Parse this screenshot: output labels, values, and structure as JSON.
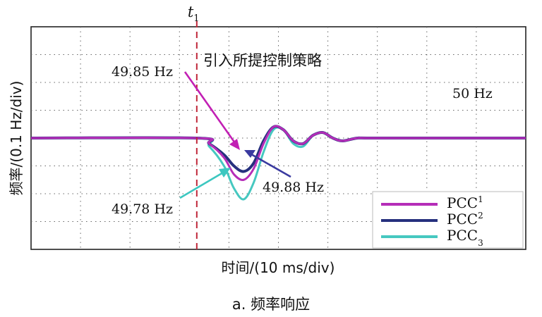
{
  "chart_data": {
    "type": "line",
    "caption": "a. 频率响应",
    "xlabel": "时间/(10 ms/div)",
    "ylabel": "频率/(0.1 Hz/div)",
    "grid": true,
    "x_divisions": 10,
    "y_divisions": 8,
    "event_marker": {
      "label_base": "t",
      "label_sub": "1",
      "x": 3.35
    },
    "nominal_label": "50 Hz",
    "annotation": "引入所提控制策略",
    "callouts": [
      {
        "text": "49.85 Hz",
        "color": "#c21fb4"
      },
      {
        "text": "49.88 Hz",
        "color": "#3a3aa0"
      },
      {
        "text": "49.78 Hz",
        "color": "#3cc7c0"
      }
    ],
    "legend": {
      "placement": "bottom-right",
      "entries": [
        {
          "base": "PCC",
          "sub": "1",
          "color": "#b52db8"
        },
        {
          "base": "PCC",
          "sub": "2",
          "color": "#26307e"
        },
        {
          "base": "PCC",
          "sub": "3",
          "color": "#46c8c0"
        }
      ]
    },
    "ylim": [
      49.6,
      50.4
    ],
    "xlim": [
      0,
      10
    ],
    "series": [
      {
        "color": "#b52db8",
        "x": [
          0,
          3.35,
          3.6,
          3.9,
          4.1,
          4.3,
          4.5,
          4.7,
          4.9,
          5.1,
          5.3,
          5.5,
          5.7,
          5.9,
          6.1,
          6.3,
          6.6,
          7.0,
          10
        ],
        "y": [
          50.0,
          50.0,
          49.98,
          49.93,
          49.87,
          49.85,
          49.89,
          49.98,
          50.04,
          50.03,
          49.99,
          49.98,
          50.01,
          50.02,
          50.0,
          49.99,
          50.0,
          50.0,
          50.0
        ]
      },
      {
        "color": "#26307e",
        "x": [
          0,
          3.35,
          3.6,
          3.9,
          4.1,
          4.3,
          4.5,
          4.7,
          4.9,
          5.1,
          5.3,
          5.5,
          5.7,
          5.9,
          6.1,
          6.3,
          6.6,
          7.0,
          10
        ],
        "y": [
          50.0,
          50.0,
          49.98,
          49.94,
          49.9,
          49.88,
          49.91,
          49.99,
          50.04,
          50.03,
          49.99,
          49.98,
          50.01,
          50.02,
          50.0,
          49.99,
          50.0,
          50.0,
          50.0
        ]
      },
      {
        "color": "#46c8c0",
        "x": [
          0,
          3.35,
          3.6,
          3.9,
          4.1,
          4.3,
          4.5,
          4.7,
          4.9,
          5.1,
          5.3,
          5.5,
          5.7,
          5.9,
          6.1,
          6.3,
          6.6,
          7.0,
          10
        ],
        "y": [
          50.0,
          50.0,
          49.97,
          49.9,
          49.82,
          49.78,
          49.84,
          49.95,
          50.03,
          50.03,
          49.98,
          49.97,
          50.01,
          50.02,
          50.0,
          49.99,
          50.0,
          50.0,
          50.0
        ]
      }
    ]
  }
}
